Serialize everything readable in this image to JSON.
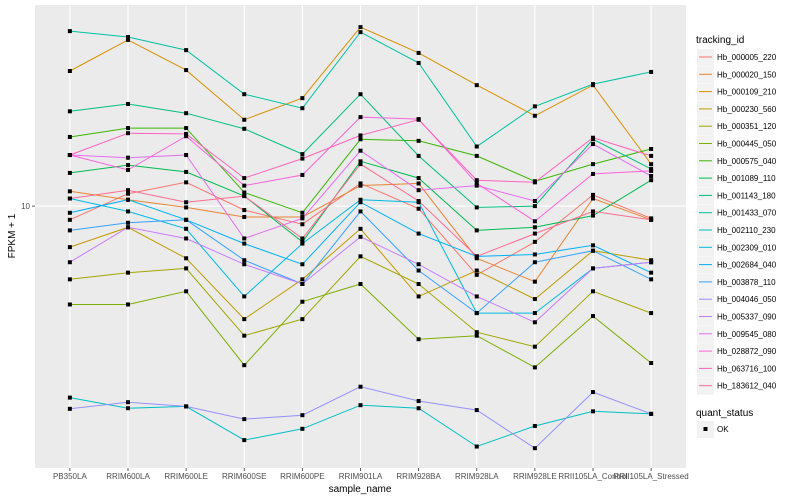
{
  "chart_data": {
    "type": "line",
    "title": "",
    "xlabel": "sample_name",
    "ylabel": "FPKM + 1",
    "y_scale": "log10",
    "ylim": [
      1.34,
      46.8
    ],
    "y_ticks": [
      10
    ],
    "y_tick_labels": [
      "10"
    ],
    "grid": true,
    "legend_position": "right",
    "categories": [
      "PB350LA",
      "RRIM600LA",
      "RRIM600LE",
      "RRIM600SE",
      "RRIM600PE",
      "RRIM901LA",
      "RRIM928BA",
      "RRIM928LA",
      "RRIM928LE",
      "RRII105LA_Control",
      "RRII105LA_Stressed"
    ],
    "legend_title": "tracking_id",
    "series": [
      {
        "name": "Hb_000005_220",
        "color": "#F8766D",
        "values": [
          9.0,
          11.0,
          12.0,
          9.7,
          8.7,
          11.9,
          9.8,
          5.9,
          7.6,
          10.9,
          9.1
        ]
      },
      {
        "name": "Hb_000020_150",
        "color": "#EA8331",
        "values": [
          11.2,
          10.5,
          9.9,
          9.2,
          9.2,
          11.7,
          11.9,
          6.7,
          5.6,
          10.6,
          9.0
        ]
      },
      {
        "name": "Hb_000109_210",
        "color": "#D89000",
        "values": [
          28.2,
          35.8,
          28.4,
          19.4,
          22.9,
          39.5,
          32.4,
          25.3,
          20.0,
          25.3,
          13.8
        ]
      },
      {
        "name": "Hb_000230_560",
        "color": "#C09B00",
        "values": [
          7.3,
          8.5,
          6.7,
          4.2,
          5.7,
          8.4,
          5.0,
          6.1,
          4.9,
          7.1,
          6.6
        ]
      },
      {
        "name": "Hb_000351_120",
        "color": "#A3A500",
        "values": [
          5.7,
          6.0,
          6.2,
          3.7,
          4.2,
          6.8,
          5.5,
          3.8,
          3.4,
          5.2,
          4.4
        ]
      },
      {
        "name": "Hb_000445_050",
        "color": "#7CAE00",
        "values": [
          4.7,
          4.7,
          5.2,
          2.95,
          4.8,
          5.5,
          3.6,
          3.7,
          2.9,
          4.3,
          3.0
        ]
      },
      {
        "name": "Hb_000575_040",
        "color": "#39B600",
        "values": [
          17.0,
          18.2,
          18.2,
          11.1,
          9.5,
          16.7,
          16.5,
          14.7,
          12.1,
          13.8,
          15.5
        ]
      },
      {
        "name": "Hb_001089_110",
        "color": "#00BB4E",
        "values": [
          12.9,
          13.7,
          13.0,
          10.8,
          7.6,
          14.1,
          12.4,
          8.3,
          8.5,
          9.3,
          12.2
        ]
      },
      {
        "name": "Hb_001143_180",
        "color": "#00BF7D",
        "values": [
          20.7,
          21.9,
          20.4,
          18.1,
          14.9,
          23.6,
          14.7,
          9.9,
          10.0,
          16.7,
          13.3
        ]
      },
      {
        "name": "Hb_001433_070",
        "color": "#00C1A3",
        "values": [
          38.3,
          36.6,
          33.1,
          23.6,
          21.2,
          38.0,
          30.0,
          15.8,
          21.5,
          25.5,
          28.0
        ]
      },
      {
        "name": "Hb_002110_230",
        "color": "#00BFC4",
        "values": [
          2.3,
          2.12,
          2.15,
          1.66,
          1.81,
          2.17,
          2.12,
          1.58,
          1.85,
          2.07,
          2.03
        ]
      },
      {
        "name": "Hb_002309_010",
        "color": "#00BAE0",
        "values": [
          10.6,
          9.6,
          8.4,
          5.0,
          7.5,
          10.5,
          10.3,
          4.4,
          4.4,
          6.2,
          6.5
        ]
      },
      {
        "name": "Hb_002684_040",
        "color": "#00B0F6",
        "values": [
          9.5,
          10.5,
          9.0,
          7.5,
          6.4,
          10.3,
          8.1,
          6.8,
          6.9,
          7.4,
          6.0
        ]
      },
      {
        "name": "Hb_003878_110",
        "color": "#35A2FF",
        "values": [
          8.3,
          8.8,
          9.0,
          6.6,
          5.5,
          9.6,
          6.1,
          4.4,
          6.5,
          7.1,
          5.7
        ]
      },
      {
        "name": "Hb_004046_050",
        "color": "#9590FF",
        "values": [
          2.11,
          2.22,
          2.15,
          1.95,
          2.01,
          2.5,
          2.24,
          2.09,
          1.56,
          2.4,
          2.03
        ]
      },
      {
        "name": "Hb_005337_090",
        "color": "#C77CFF",
        "values": [
          6.5,
          8.5,
          7.8,
          6.4,
          5.5,
          7.9,
          6.4,
          5.0,
          4.1,
          6.2,
          6.5
        ]
      },
      {
        "name": "Hb_009545_080",
        "color": "#E76BF3",
        "values": [
          14.8,
          14.5,
          14.8,
          7.8,
          9.1,
          15.3,
          11.3,
          11.7,
          10.4,
          16.1,
          12.6
        ]
      },
      {
        "name": "Hb_028872_090",
        "color": "#FA62DB",
        "values": [
          14.8,
          13.2,
          17.1,
          11.7,
          12.7,
          19.8,
          19.5,
          11.9,
          8.9,
          12.8,
          13.1
        ]
      },
      {
        "name": "Hb_063716_100",
        "color": "#FF62BC",
        "values": [
          14.8,
          17.5,
          17.4,
          12.4,
          14.4,
          17.2,
          19.4,
          12.2,
          12.0,
          16.9,
          14.7
        ]
      },
      {
        "name": "Hb_183612_040",
        "color": "#FF6C91",
        "values": [
          10.6,
          11.3,
          10.3,
          10.8,
          7.8,
          13.8,
          10.4,
          6.8,
          8.1,
          9.6,
          9.0
        ]
      }
    ],
    "point_legend": {
      "title": "quant_status",
      "items": [
        {
          "label": "OK",
          "color": "#000000",
          "shape": "square"
        }
      ]
    }
  }
}
